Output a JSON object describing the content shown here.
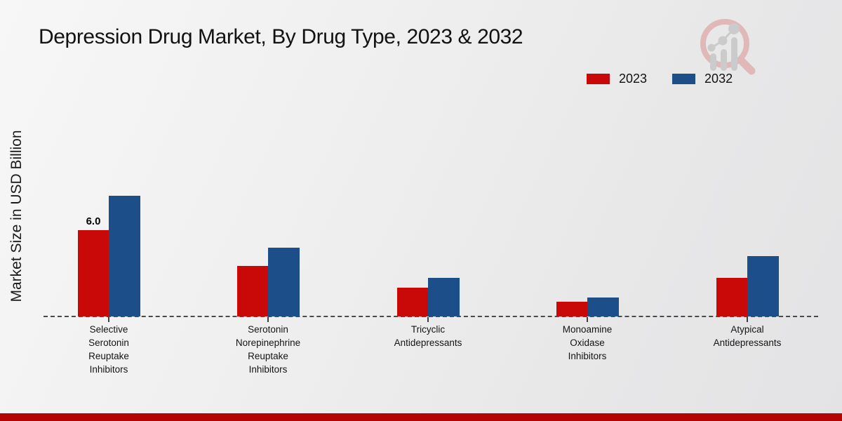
{
  "chart_data": {
    "type": "bar",
    "title": "Depression Drug Market, By Drug Type, 2023 & 2032",
    "ylabel": "Market Size in USD Billion",
    "categories": [
      "Selective Serotonin Reuptake Inhibitors",
      "Serotonin Norepinephrine Reuptake Inhibitors",
      "Tricyclic Antidepressants",
      "Monoamine Oxidase Inhibitors",
      "Atypical Antidepressants"
    ],
    "category_lines": [
      [
        "Selective",
        "Serotonin",
        "Reuptake",
        "Inhibitors"
      ],
      [
        "Serotonin",
        "Norepinephrine",
        "Reuptake",
        "Inhibitors"
      ],
      [
        "Tricyclic",
        "Antidepressants"
      ],
      [
        "Monoamine",
        "Oxidase",
        "Inhibitors"
      ],
      [
        "Atypical",
        "Antidepressants"
      ]
    ],
    "series": [
      {
        "name": "2023",
        "color": "#c90808",
        "values": [
          6.0,
          3.5,
          2.0,
          1.0,
          2.7
        ]
      },
      {
        "name": "2032",
        "color": "#1c4e8a",
        "values": [
          8.4,
          4.8,
          2.7,
          1.3,
          4.2
        ]
      }
    ],
    "annotations": [
      {
        "series_index": 0,
        "category_index": 0,
        "text": "6.0"
      }
    ],
    "ylim": [
      0,
      9
    ],
    "grid": false,
    "legend_position": "top-right",
    "baseline_style": "dashed"
  },
  "footer": {
    "bar_color": "#b50404"
  },
  "logo": {
    "name": "magnifier-bar-chart-logo"
  }
}
